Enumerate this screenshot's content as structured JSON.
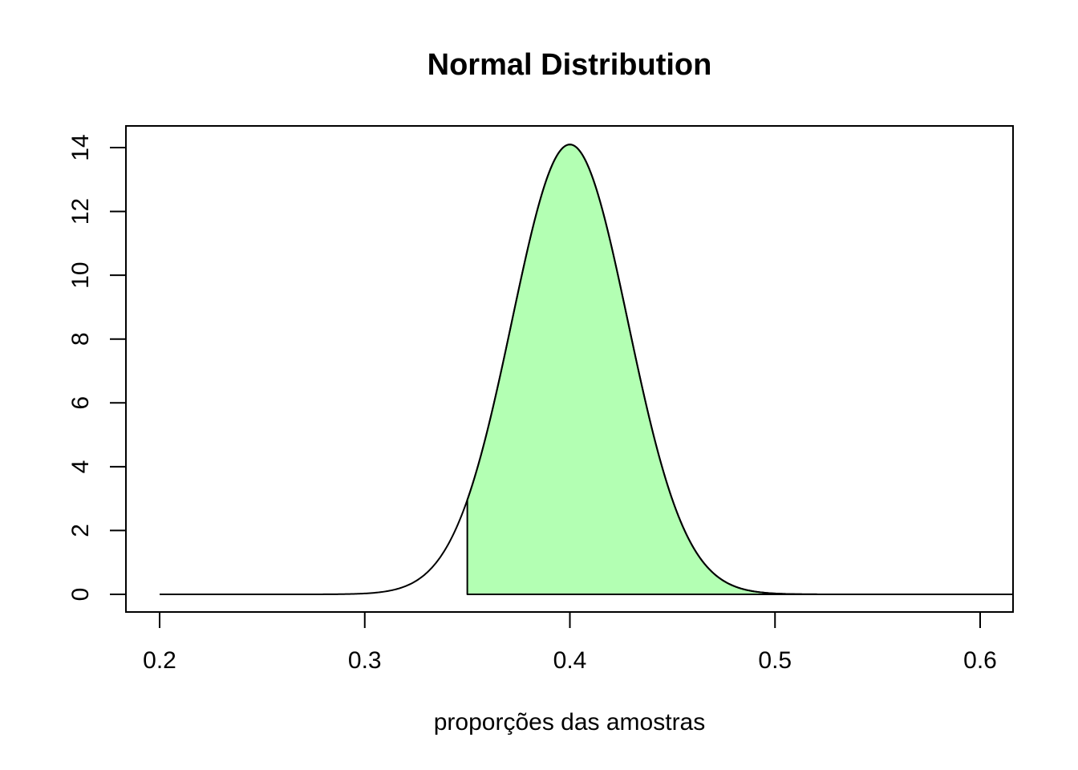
{
  "chart_data": {
    "type": "area",
    "title": "Normal Distribution",
    "xlabel": "proporções das amostras",
    "ylabel": "",
    "distribution": "normal",
    "mean": 0.4,
    "sd": 0.0283,
    "shaded_from": 0.35,
    "xlim": [
      0.2,
      0.6
    ],
    "ylim": [
      0,
      14
    ],
    "x_ticks": [
      0.2,
      0.3,
      0.4,
      0.5,
      0.6
    ],
    "x_tick_labels": [
      "0.2",
      "0.3",
      "0.4",
      "0.5",
      "0.6"
    ],
    "y_ticks": [
      0,
      2,
      4,
      6,
      8,
      10,
      12,
      14
    ],
    "y_tick_labels": [
      "0",
      "2",
      "4",
      "6",
      "8",
      "10",
      "12",
      "14"
    ],
    "grid": false,
    "legend": "none",
    "colors": {
      "fill": "#b3ffb3",
      "line": "#000000"
    }
  }
}
